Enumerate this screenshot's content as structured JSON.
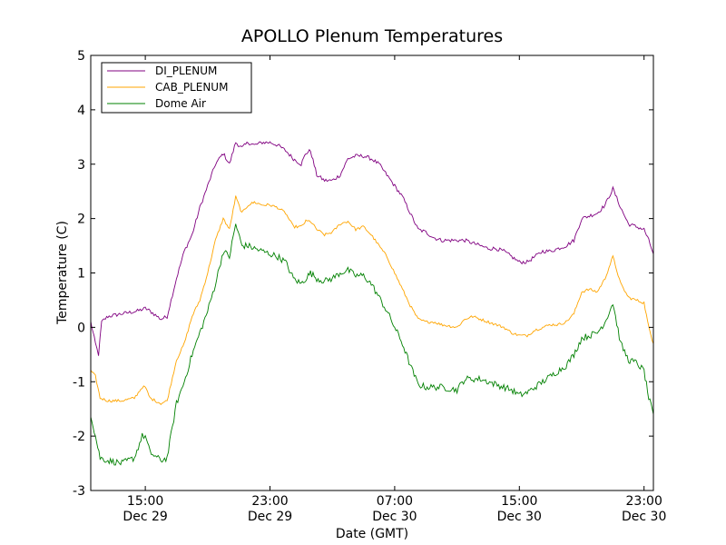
{
  "chart_data": {
    "type": "line",
    "title": "APOLLO Plenum Temperatures",
    "xlabel": "Date (GMT)",
    "ylabel": "Temperature (C)",
    "ylim": [
      -3,
      5
    ],
    "xlim": [
      11.5,
      47.6
    ],
    "y_ticks": [
      -3,
      -2,
      -1,
      0,
      1,
      2,
      3,
      4,
      5
    ],
    "x_ticks": [
      {
        "value": 15,
        "time": "15:00",
        "date": "Dec 29"
      },
      {
        "value": 23,
        "time": "23:00",
        "date": "Dec 29"
      },
      {
        "value": 31,
        "time": "07:00",
        "date": "Dec 30"
      },
      {
        "value": 39,
        "time": "15:00",
        "date": "Dec 30"
      },
      {
        "value": 47,
        "time": "23:00",
        "date": "Dec 30"
      }
    ],
    "x_unit": "hours since 00:00 GMT Dec 29",
    "legend_position": "top-left",
    "series": [
      {
        "name": "DI_PLENUM",
        "color": "#800080",
        "points": [
          [
            11.5,
            0.1
          ],
          [
            11.8,
            -0.3
          ],
          [
            12.0,
            -0.5
          ],
          [
            12.2,
            0.1
          ],
          [
            12.6,
            0.2
          ],
          [
            13.5,
            0.25
          ],
          [
            14.5,
            0.3
          ],
          [
            15.0,
            0.35
          ],
          [
            15.3,
            0.3
          ],
          [
            16.0,
            0.15
          ],
          [
            16.4,
            0.2
          ],
          [
            17.0,
            0.9
          ],
          [
            17.5,
            1.4
          ],
          [
            18.0,
            1.7
          ],
          [
            18.5,
            2.2
          ],
          [
            19.0,
            2.6
          ],
          [
            19.5,
            3.0
          ],
          [
            20.0,
            3.2
          ],
          [
            20.4,
            3.0
          ],
          [
            20.8,
            3.4
          ],
          [
            21.2,
            3.3
          ],
          [
            21.6,
            3.4
          ],
          [
            22.0,
            3.35
          ],
          [
            22.5,
            3.4
          ],
          [
            23.0,
            3.4
          ],
          [
            23.5,
            3.35
          ],
          [
            24.0,
            3.25
          ],
          [
            24.5,
            3.1
          ],
          [
            25.0,
            3.0
          ],
          [
            25.3,
            3.2
          ],
          [
            25.6,
            3.25
          ],
          [
            26.0,
            2.8
          ],
          [
            26.5,
            2.7
          ],
          [
            27.0,
            2.7
          ],
          [
            27.5,
            2.8
          ],
          [
            28.0,
            3.1
          ],
          [
            28.5,
            3.15
          ],
          [
            29.0,
            3.15
          ],
          [
            29.5,
            3.1
          ],
          [
            30.0,
            3.0
          ],
          [
            30.5,
            2.8
          ],
          [
            31.0,
            2.6
          ],
          [
            31.5,
            2.4
          ],
          [
            32.0,
            2.1
          ],
          [
            32.5,
            1.8
          ],
          [
            33.0,
            1.75
          ],
          [
            33.5,
            1.65
          ],
          [
            34.0,
            1.6
          ],
          [
            35.0,
            1.6
          ],
          [
            35.5,
            1.6
          ],
          [
            36.0,
            1.55
          ],
          [
            36.5,
            1.5
          ],
          [
            37.0,
            1.45
          ],
          [
            37.5,
            1.45
          ],
          [
            38.0,
            1.4
          ],
          [
            38.5,
            1.3
          ],
          [
            39.0,
            1.2
          ],
          [
            39.5,
            1.2
          ],
          [
            40.0,
            1.3
          ],
          [
            40.5,
            1.4
          ],
          [
            41.0,
            1.4
          ],
          [
            41.5,
            1.45
          ],
          [
            42.0,
            1.5
          ],
          [
            42.5,
            1.6
          ],
          [
            43.0,
            2.0
          ],
          [
            43.5,
            2.05
          ],
          [
            44.0,
            2.1
          ],
          [
            44.5,
            2.25
          ],
          [
            45.0,
            2.55
          ],
          [
            45.5,
            2.2
          ],
          [
            46.0,
            1.9
          ],
          [
            46.5,
            1.85
          ],
          [
            47.0,
            1.8
          ],
          [
            47.3,
            1.6
          ],
          [
            47.6,
            1.35
          ]
        ]
      },
      {
        "name": "CAB_PLENUM",
        "color": "#FFA500",
        "points": [
          [
            11.5,
            -0.8
          ],
          [
            11.8,
            -0.9
          ],
          [
            12.1,
            -1.3
          ],
          [
            12.6,
            -1.35
          ],
          [
            13.5,
            -1.35
          ],
          [
            14.3,
            -1.3
          ],
          [
            14.8,
            -1.1
          ],
          [
            15.0,
            -1.1
          ],
          [
            15.3,
            -1.3
          ],
          [
            16.0,
            -1.4
          ],
          [
            16.4,
            -1.35
          ],
          [
            17.0,
            -0.6
          ],
          [
            17.5,
            -0.3
          ],
          [
            18.0,
            0.2
          ],
          [
            18.5,
            0.5
          ],
          [
            19.0,
            1.0
          ],
          [
            19.5,
            1.6
          ],
          [
            20.0,
            2.0
          ],
          [
            20.4,
            1.8
          ],
          [
            20.8,
            2.4
          ],
          [
            21.2,
            2.1
          ],
          [
            21.6,
            2.25
          ],
          [
            22.0,
            2.3
          ],
          [
            22.5,
            2.25
          ],
          [
            23.0,
            2.25
          ],
          [
            23.5,
            2.2
          ],
          [
            24.0,
            2.1
          ],
          [
            24.5,
            1.85
          ],
          [
            25.0,
            1.85
          ],
          [
            25.3,
            1.95
          ],
          [
            25.6,
            1.95
          ],
          [
            26.0,
            1.8
          ],
          [
            26.5,
            1.7
          ],
          [
            27.0,
            1.75
          ],
          [
            27.5,
            1.9
          ],
          [
            28.0,
            1.95
          ],
          [
            28.5,
            1.8
          ],
          [
            29.0,
            1.85
          ],
          [
            29.5,
            1.7
          ],
          [
            30.0,
            1.5
          ],
          [
            30.5,
            1.3
          ],
          [
            31.0,
            1.0
          ],
          [
            31.5,
            0.7
          ],
          [
            32.0,
            0.4
          ],
          [
            32.5,
            0.15
          ],
          [
            33.0,
            0.1
          ],
          [
            33.5,
            0.1
          ],
          [
            34.0,
            0.05
          ],
          [
            35.0,
            0.0
          ],
          [
            35.5,
            0.15
          ],
          [
            36.0,
            0.2
          ],
          [
            36.5,
            0.15
          ],
          [
            37.0,
            0.1
          ],
          [
            37.5,
            0.05
          ],
          [
            38.0,
            0.0
          ],
          [
            38.5,
            -0.1
          ],
          [
            39.0,
            -0.15
          ],
          [
            39.5,
            -0.15
          ],
          [
            40.0,
            -0.05
          ],
          [
            40.5,
            0.0
          ],
          [
            41.0,
            0.05
          ],
          [
            41.5,
            0.05
          ],
          [
            42.0,
            0.1
          ],
          [
            42.5,
            0.25
          ],
          [
            43.0,
            0.65
          ],
          [
            43.5,
            0.7
          ],
          [
            44.0,
            0.65
          ],
          [
            44.5,
            0.9
          ],
          [
            45.0,
            1.3
          ],
          [
            45.5,
            0.8
          ],
          [
            46.0,
            0.55
          ],
          [
            46.5,
            0.5
          ],
          [
            47.0,
            0.45
          ],
          [
            47.3,
            0.0
          ],
          [
            47.6,
            -0.3
          ]
        ]
      },
      {
        "name": "Dome Air",
        "color": "#008000",
        "points": [
          [
            11.5,
            -1.6
          ],
          [
            11.8,
            -2.0
          ],
          [
            12.1,
            -2.4
          ],
          [
            12.6,
            -2.45
          ],
          [
            13.5,
            -2.5
          ],
          [
            14.3,
            -2.4
          ],
          [
            14.8,
            -2.0
          ],
          [
            15.0,
            -2.0
          ],
          [
            15.3,
            -2.3
          ],
          [
            16.0,
            -2.45
          ],
          [
            16.4,
            -2.4
          ],
          [
            17.0,
            -1.4
          ],
          [
            17.5,
            -1.0
          ],
          [
            18.0,
            -0.5
          ],
          [
            18.5,
            -0.1
          ],
          [
            19.0,
            0.3
          ],
          [
            19.5,
            0.8
          ],
          [
            20.0,
            1.4
          ],
          [
            20.4,
            1.3
          ],
          [
            20.8,
            1.9
          ],
          [
            21.2,
            1.5
          ],
          [
            21.6,
            1.5
          ],
          [
            22.0,
            1.45
          ],
          [
            22.5,
            1.4
          ],
          [
            23.0,
            1.35
          ],
          [
            23.5,
            1.3
          ],
          [
            24.0,
            1.2
          ],
          [
            24.5,
            0.9
          ],
          [
            25.0,
            0.8
          ],
          [
            25.3,
            0.9
          ],
          [
            25.6,
            1.0
          ],
          [
            26.0,
            0.9
          ],
          [
            26.5,
            0.85
          ],
          [
            27.0,
            0.9
          ],
          [
            27.5,
            1.0
          ],
          [
            28.0,
            1.05
          ],
          [
            28.5,
            0.95
          ],
          [
            29.0,
            0.95
          ],
          [
            29.5,
            0.8
          ],
          [
            30.0,
            0.55
          ],
          [
            30.5,
            0.3
          ],
          [
            31.0,
            0.0
          ],
          [
            31.5,
            -0.3
          ],
          [
            32.0,
            -0.7
          ],
          [
            32.5,
            -1.05
          ],
          [
            33.0,
            -1.1
          ],
          [
            33.5,
            -1.1
          ],
          [
            34.0,
            -1.1
          ],
          [
            35.0,
            -1.15
          ],
          [
            35.5,
            -0.95
          ],
          [
            36.0,
            -0.95
          ],
          [
            36.5,
            -0.95
          ],
          [
            37.0,
            -1.0
          ],
          [
            37.5,
            -1.05
          ],
          [
            38.0,
            -1.1
          ],
          [
            38.5,
            -1.15
          ],
          [
            39.0,
            -1.25
          ],
          [
            39.5,
            -1.2
          ],
          [
            40.0,
            -1.1
          ],
          [
            40.5,
            -1.0
          ],
          [
            41.0,
            -0.9
          ],
          [
            41.5,
            -0.8
          ],
          [
            42.0,
            -0.7
          ],
          [
            42.5,
            -0.5
          ],
          [
            43.0,
            -0.2
          ],
          [
            43.5,
            -0.15
          ],
          [
            44.0,
            -0.1
          ],
          [
            44.5,
            0.1
          ],
          [
            45.0,
            0.45
          ],
          [
            45.5,
            -0.3
          ],
          [
            46.0,
            -0.6
          ],
          [
            46.5,
            -0.65
          ],
          [
            47.0,
            -0.8
          ],
          [
            47.3,
            -1.3
          ],
          [
            47.6,
            -1.6
          ]
        ]
      }
    ]
  }
}
